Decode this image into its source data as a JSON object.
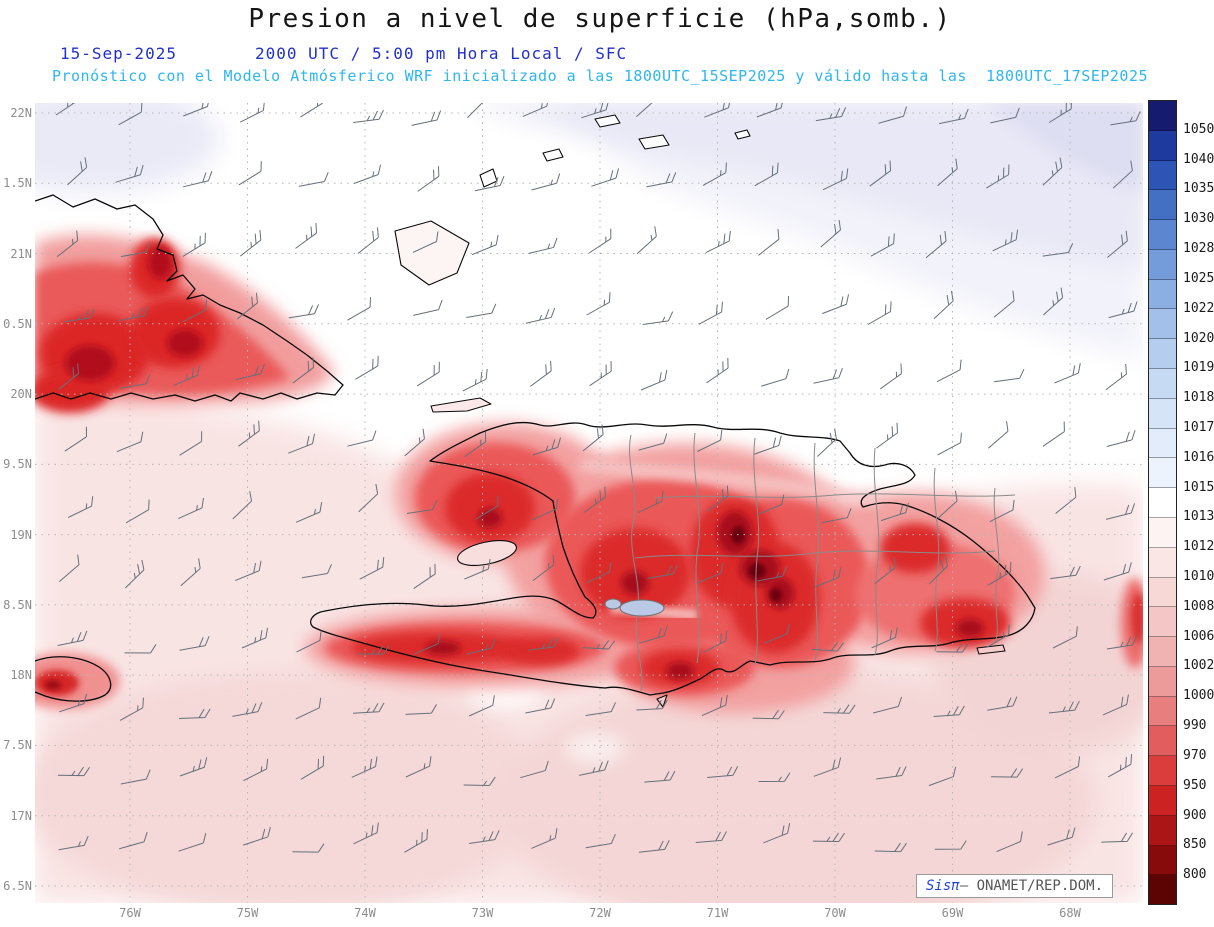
{
  "title": "Presion a nivel de superficie (hPa,somb.)",
  "header": {
    "date": "15-Sep-2025",
    "time": "2000 UTC / 5:00 pm Hora Local / SFC",
    "forecast": "Pronóstico con el Modelo Atmósferico WRF inicializado a las 1800UTC_15SEP2025 y válido hasta las  1800UTC_17SEP2025"
  },
  "axes": {
    "lat_labels": [
      "22N",
      "1.5N",
      "21N",
      "0.5N",
      "20N",
      "9.5N",
      "19N",
      "8.5N",
      "18N",
      "7.5N",
      "17N",
      "6.5N"
    ],
    "lon_labels": [
      "76W",
      "75W",
      "74W",
      "73W",
      "72W",
      "71W",
      "70W",
      "69W",
      "68W"
    ]
  },
  "colorbar": {
    "values": [
      "1050",
      "1040",
      "1035",
      "1030",
      "1028",
      "1025",
      "1022",
      "1020",
      "1019",
      "1018",
      "1017",
      "1016",
      "1015",
      "1013",
      "1012",
      "1010",
      "1008",
      "1006",
      "1002",
      "1000",
      "990",
      "970",
      "950",
      "900",
      "850",
      "800"
    ],
    "colors": [
      "#151c70",
      "#1e3a9e",
      "#2d55b5",
      "#4470c4",
      "#5c86d0",
      "#749bda",
      "#8cafe3",
      "#a3c0ea",
      "#b5cef0",
      "#c6daf4",
      "#d5e4f7",
      "#e2ecfa",
      "#edf3fc",
      "#ffffff",
      "#fdf3f3",
      "#fbe6e6",
      "#f8d7d7",
      "#f5c6c6",
      "#f1b2b2",
      "#ed9a9a",
      "#e87e7e",
      "#e25e5e",
      "#db3d3d",
      "#cc2222",
      "#ab1515",
      "#870b0b",
      "#5c0404"
    ]
  },
  "watermark": {
    "brand": "Sisπ",
    "org": "– ONAMET/REP.DOM."
  }
}
